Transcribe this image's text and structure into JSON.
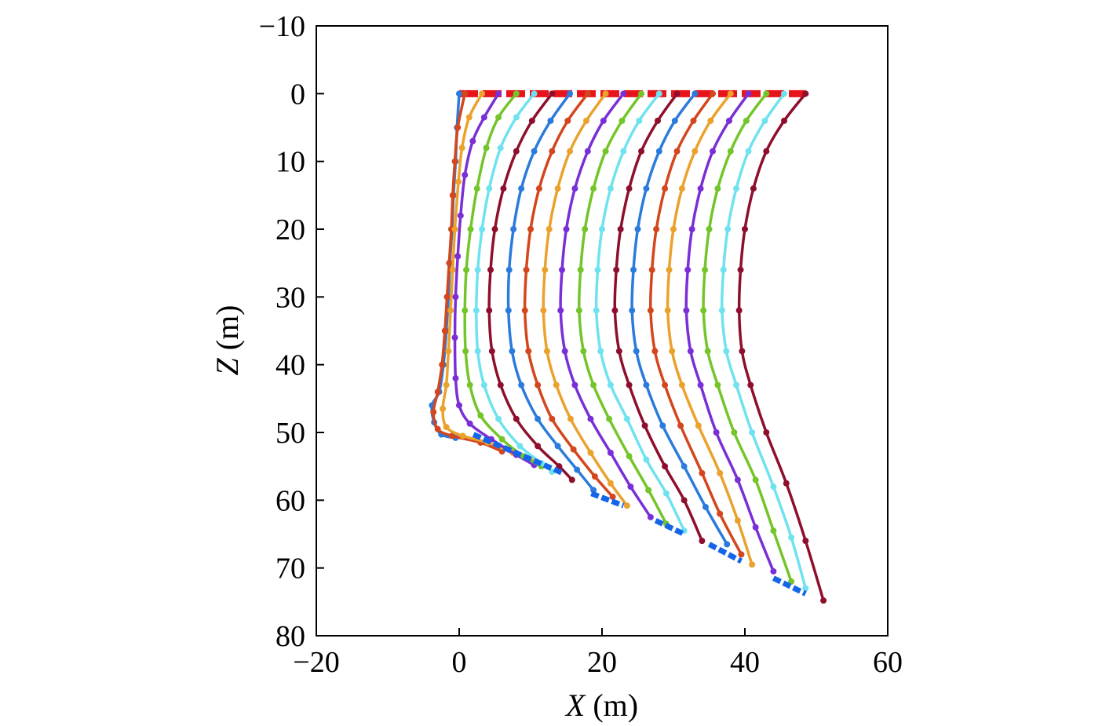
{
  "chart_data": {
    "type": "line",
    "title": "",
    "xlabel": {
      "symbol": "X",
      "unit": " (m)"
    },
    "ylabel": {
      "symbol": "Z",
      "unit": " (m)"
    },
    "xlim": [
      -20,
      60
    ],
    "ylim": [
      -10,
      80
    ],
    "y_inverted": true,
    "grid": false,
    "legend": "none",
    "xticks": [
      -20,
      0,
      20,
      40,
      60
    ],
    "xtick_labels": [
      "−20",
      "0",
      "20",
      "40",
      "60"
    ],
    "yticks": [
      -10,
      0,
      10,
      20,
      30,
      40,
      50,
      60,
      70,
      80
    ],
    "ytick_labels": [
      "−10",
      "0",
      "10",
      "20",
      "30",
      "40",
      "50",
      "60",
      "70",
      "80"
    ],
    "color_cycle": [
      "#2b7bdc",
      "#d4461d",
      "#eaa22d",
      "#7a2fd6",
      "#74c52a",
      "#6fe2ef",
      "#8e0f2c"
    ],
    "series": [
      {
        "color": "#2b7bdc",
        "points": [
          [
            0.0,
            0
          ],
          [
            -0.3,
            5
          ],
          [
            -0.5,
            10
          ],
          [
            -0.8,
            15
          ],
          [
            -1.0,
            20
          ],
          [
            -1.3,
            25
          ],
          [
            -1.5,
            30
          ],
          [
            -1.8,
            35
          ],
          [
            -2.2,
            40
          ],
          [
            -2.8,
            44
          ],
          [
            -3.8,
            46
          ],
          [
            -3.5,
            48.5
          ],
          [
            -2.5,
            50.3
          ],
          [
            -0.5,
            50.8
          ]
        ]
      },
      {
        "color": "#d4461d",
        "points": [
          [
            0.8,
            0
          ],
          [
            -0.2,
            5
          ],
          [
            -0.6,
            10
          ],
          [
            -0.9,
            15
          ],
          [
            -1.1,
            20
          ],
          [
            -1.4,
            25
          ],
          [
            -1.7,
            30
          ],
          [
            -2.0,
            35
          ],
          [
            -2.4,
            40
          ],
          [
            -3.0,
            44
          ],
          [
            -3.6,
            47
          ],
          [
            -3.0,
            49.5
          ],
          [
            -1.0,
            50.5
          ],
          [
            3.0,
            51.5
          ],
          [
            6.0,
            52.8
          ]
        ]
      },
      {
        "color": "#eaa22d",
        "points": [
          [
            3.2,
            0
          ],
          [
            1.4,
            3.5
          ],
          [
            0.4,
            8
          ],
          [
            -0.1,
            13
          ],
          [
            -0.6,
            20
          ],
          [
            -0.9,
            26
          ],
          [
            -1.2,
            32
          ],
          [
            -1.5,
            38
          ],
          [
            -1.8,
            43
          ],
          [
            -2.3,
            46.5
          ],
          [
            -1.8,
            49.2
          ],
          [
            0.5,
            50.5
          ],
          [
            4.0,
            51.5
          ],
          [
            7.5,
            53.0
          ],
          [
            10.5,
            54.2
          ]
        ]
      },
      {
        "color": "#7a2fd6",
        "points": [
          [
            5.5,
            0
          ],
          [
            3.5,
            3.5
          ],
          [
            1.9,
            7
          ],
          [
            0.8,
            12
          ],
          [
            0.2,
            18
          ],
          [
            -0.2,
            24
          ],
          [
            -0.5,
            30
          ],
          [
            -0.6,
            36
          ],
          [
            -0.5,
            42
          ],
          [
            0.0,
            46
          ],
          [
            1.5,
            48.7
          ],
          [
            4.5,
            51.0
          ],
          [
            8.0,
            53.3
          ],
          [
            10.5,
            54.8
          ]
        ]
      },
      {
        "color": "#74c52a",
        "points": [
          [
            8.0,
            0
          ],
          [
            5.5,
            3.5
          ],
          [
            3.8,
            8
          ],
          [
            2.5,
            14
          ],
          [
            1.6,
            20
          ],
          [
            1.0,
            26
          ],
          [
            0.8,
            32
          ],
          [
            0.9,
            38
          ],
          [
            1.5,
            43
          ],
          [
            3.0,
            47.5
          ],
          [
            6.0,
            51
          ],
          [
            9.0,
            53.5
          ],
          [
            11.5,
            55.0
          ]
        ]
      },
      {
        "color": "#6fe2ef",
        "points": [
          [
            10.5,
            0
          ],
          [
            8.0,
            3.5
          ],
          [
            5.8,
            8
          ],
          [
            4.2,
            14
          ],
          [
            3.2,
            20
          ],
          [
            2.6,
            26
          ],
          [
            2.4,
            32
          ],
          [
            2.6,
            38
          ],
          [
            3.5,
            43
          ],
          [
            5.5,
            48
          ],
          [
            8.5,
            52
          ],
          [
            11.5,
            54.5
          ],
          [
            13.0,
            55.8
          ]
        ]
      },
      {
        "color": "#8e0f2c",
        "points": [
          [
            13.0,
            0
          ],
          [
            10.2,
            4
          ],
          [
            8.0,
            8.5
          ],
          [
            6.2,
            14
          ],
          [
            5.0,
            20
          ],
          [
            4.4,
            26
          ],
          [
            4.2,
            32
          ],
          [
            4.6,
            38
          ],
          [
            5.8,
            43
          ],
          [
            8.0,
            48
          ],
          [
            11.0,
            52
          ],
          [
            14.0,
            55
          ],
          [
            15.8,
            57.0
          ]
        ]
      },
      {
        "color": "#2b7bdc",
        "points": [
          [
            15.5,
            0
          ],
          [
            12.8,
            4
          ],
          [
            10.5,
            8.5
          ],
          [
            8.7,
            14
          ],
          [
            7.6,
            20
          ],
          [
            7.0,
            26
          ],
          [
            6.9,
            32
          ],
          [
            7.4,
            38
          ],
          [
            8.7,
            43
          ],
          [
            11.0,
            48
          ],
          [
            13.8,
            52
          ],
          [
            16.5,
            55.5
          ],
          [
            18.8,
            58.5
          ]
        ]
      },
      {
        "color": "#d4461d",
        "points": [
          [
            18.0,
            0
          ],
          [
            15.2,
            4
          ],
          [
            13.0,
            8.5
          ],
          [
            11.2,
            14
          ],
          [
            10.0,
            20
          ],
          [
            9.4,
            26
          ],
          [
            9.2,
            32
          ],
          [
            9.7,
            38
          ],
          [
            11.0,
            43
          ],
          [
            13.0,
            48
          ],
          [
            16.0,
            52.5
          ],
          [
            19.0,
            56.5
          ],
          [
            21.5,
            59.5
          ]
        ]
      },
      {
        "color": "#eaa22d",
        "points": [
          [
            20.5,
            0
          ],
          [
            17.8,
            4
          ],
          [
            15.5,
            8.5
          ],
          [
            13.8,
            14
          ],
          [
            12.6,
            20
          ],
          [
            12.0,
            26
          ],
          [
            11.8,
            32
          ],
          [
            12.3,
            38
          ],
          [
            13.6,
            43
          ],
          [
            15.6,
            48
          ],
          [
            18.4,
            53
          ],
          [
            21.2,
            57.5
          ],
          [
            23.5,
            60.8
          ]
        ]
      },
      {
        "color": "#7a2fd6",
        "points": [
          [
            23.0,
            0
          ],
          [
            20.2,
            4
          ],
          [
            18.0,
            8.5
          ],
          [
            16.2,
            14
          ],
          [
            15.0,
            20
          ],
          [
            14.4,
            26
          ],
          [
            14.2,
            32
          ],
          [
            14.8,
            38
          ],
          [
            16.2,
            43
          ],
          [
            18.4,
            48
          ],
          [
            21.2,
            53
          ],
          [
            24.0,
            58
          ],
          [
            26.8,
            62.5
          ]
        ]
      },
      {
        "color": "#74c52a",
        "points": [
          [
            25.5,
            0
          ],
          [
            22.8,
            4
          ],
          [
            20.5,
            8.5
          ],
          [
            18.8,
            14
          ],
          [
            17.6,
            20
          ],
          [
            17.0,
            26
          ],
          [
            16.8,
            32
          ],
          [
            17.4,
            38
          ],
          [
            18.8,
            43
          ],
          [
            21.0,
            48
          ],
          [
            23.8,
            53.5
          ],
          [
            26.5,
            58.5
          ],
          [
            29.0,
            63.5
          ]
        ]
      },
      {
        "color": "#6fe2ef",
        "points": [
          [
            28.0,
            0
          ],
          [
            25.2,
            4
          ],
          [
            23.0,
            8.5
          ],
          [
            21.2,
            14
          ],
          [
            20.0,
            20
          ],
          [
            19.4,
            26
          ],
          [
            19.2,
            32
          ],
          [
            19.8,
            38
          ],
          [
            21.2,
            43
          ],
          [
            23.5,
            48
          ],
          [
            26.2,
            54
          ],
          [
            29.0,
            59
          ],
          [
            31.5,
            64.5
          ]
        ]
      },
      {
        "color": "#8e0f2c",
        "points": [
          [
            30.5,
            0
          ],
          [
            27.8,
            4
          ],
          [
            25.5,
            8.5
          ],
          [
            23.8,
            14
          ],
          [
            22.6,
            20
          ],
          [
            22.0,
            26
          ],
          [
            21.8,
            32
          ],
          [
            22.4,
            38
          ],
          [
            23.8,
            43
          ],
          [
            26.0,
            49
          ],
          [
            28.8,
            55
          ],
          [
            31.5,
            60
          ],
          [
            34.0,
            66.0
          ]
        ]
      },
      {
        "color": "#2b7bdc",
        "points": [
          [
            33.0,
            0
          ],
          [
            30.2,
            4
          ],
          [
            28.0,
            8.5
          ],
          [
            26.2,
            14
          ],
          [
            25.0,
            20
          ],
          [
            24.4,
            26
          ],
          [
            24.2,
            32
          ],
          [
            24.8,
            38
          ],
          [
            26.2,
            43
          ],
          [
            28.5,
            49
          ],
          [
            31.5,
            55
          ],
          [
            34.5,
            61
          ],
          [
            37.5,
            66.5
          ]
        ]
      },
      {
        "color": "#d4461d",
        "points": [
          [
            35.5,
            0
          ],
          [
            32.8,
            4
          ],
          [
            30.5,
            8.5
          ],
          [
            28.8,
            14
          ],
          [
            27.6,
            20
          ],
          [
            27.0,
            26
          ],
          [
            26.8,
            32
          ],
          [
            27.4,
            38
          ],
          [
            28.8,
            43
          ],
          [
            31.0,
            49
          ],
          [
            34.0,
            56
          ],
          [
            36.5,
            62
          ],
          [
            39.5,
            68.0
          ]
        ]
      },
      {
        "color": "#eaa22d",
        "points": [
          [
            38.0,
            0
          ],
          [
            35.2,
            4
          ],
          [
            33.0,
            8.5
          ],
          [
            31.2,
            14
          ],
          [
            30.0,
            20
          ],
          [
            29.4,
            26
          ],
          [
            29.2,
            32
          ],
          [
            29.8,
            38
          ],
          [
            31.2,
            43
          ],
          [
            33.5,
            49
          ],
          [
            36.5,
            56
          ],
          [
            39.0,
            63
          ],
          [
            41.0,
            69.5
          ]
        ]
      },
      {
        "color": "#7a2fd6",
        "points": [
          [
            40.5,
            0
          ],
          [
            37.8,
            4
          ],
          [
            35.5,
            8.5
          ],
          [
            33.8,
            14
          ],
          [
            32.6,
            20
          ],
          [
            32.0,
            26
          ],
          [
            31.8,
            32
          ],
          [
            32.4,
            38
          ],
          [
            33.8,
            43
          ],
          [
            36.0,
            50
          ],
          [
            39.0,
            57
          ],
          [
            41.5,
            64
          ],
          [
            44.0,
            70.5
          ]
        ]
      },
      {
        "color": "#74c52a",
        "points": [
          [
            43.0,
            0
          ],
          [
            40.2,
            4
          ],
          [
            38.0,
            8.5
          ],
          [
            36.2,
            14
          ],
          [
            35.0,
            20
          ],
          [
            34.4,
            26
          ],
          [
            34.2,
            32
          ],
          [
            34.8,
            38
          ],
          [
            36.2,
            43
          ],
          [
            38.5,
            50
          ],
          [
            41.5,
            57
          ],
          [
            44.0,
            64.5
          ],
          [
            46.5,
            72.0
          ]
        ]
      },
      {
        "color": "#6fe2ef",
        "points": [
          [
            45.5,
            0
          ],
          [
            42.8,
            4
          ],
          [
            40.5,
            8.5
          ],
          [
            38.8,
            14
          ],
          [
            37.6,
            20
          ],
          [
            37.0,
            26
          ],
          [
            36.8,
            32
          ],
          [
            37.4,
            38
          ],
          [
            38.8,
            43
          ],
          [
            41.0,
            50
          ],
          [
            44.0,
            58
          ],
          [
            46.5,
            65.5
          ],
          [
            48.5,
            73.0
          ]
        ]
      },
      {
        "color": "#8e0f2c",
        "points": [
          [
            48.5,
            0
          ],
          [
            45.5,
            4
          ],
          [
            43.0,
            8.5
          ],
          [
            41.2,
            14
          ],
          [
            40.0,
            20
          ],
          [
            39.4,
            26
          ],
          [
            39.2,
            32
          ],
          [
            39.6,
            38
          ],
          [
            40.8,
            43
          ],
          [
            43.0,
            50
          ],
          [
            45.8,
            57.5
          ],
          [
            48.5,
            66
          ],
          [
            51.0,
            74.8
          ]
        ]
      }
    ],
    "top_beam": {
      "color": "#e8141c",
      "x_range": [
        0,
        48.5
      ],
      "z": 0
    },
    "anchor_segments": [
      {
        "color": "#1565e8",
        "x_range": [
          2.0,
          14.5
        ],
        "z_range": [
          50.3,
          56.0
        ]
      },
      {
        "color": "#1565e8",
        "x_range": [
          18.5,
          23.0
        ],
        "z_range": [
          59.0,
          60.8
        ]
      },
      {
        "color": "#1565e8",
        "x_range": [
          27.5,
          31.5
        ],
        "z_range": [
          63.0,
          65.0
        ]
      },
      {
        "color": "#1565e8",
        "x_range": [
          35.0,
          39.5
        ],
        "z_range": [
          66.5,
          69.0
        ]
      },
      {
        "color": "#1565e8",
        "x_range": [
          44.0,
          48.5
        ],
        "z_range": [
          71.5,
          73.8
        ]
      }
    ]
  }
}
